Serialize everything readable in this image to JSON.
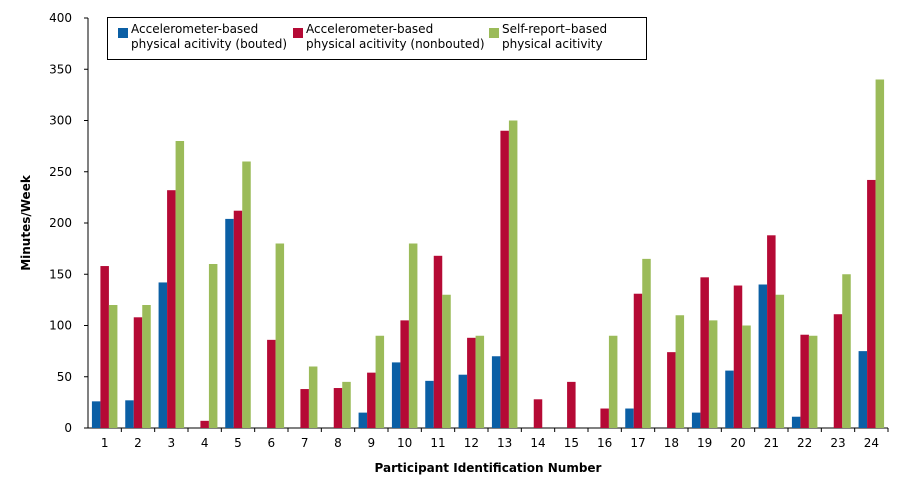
{
  "chart_data": {
    "type": "bar",
    "xlabel": "Participant Identification Number",
    "ylabel": "Minutes/Week",
    "ylim": [
      0,
      400
    ],
    "yticks": [
      0,
      50,
      100,
      150,
      200,
      250,
      300,
      350,
      400
    ],
    "categories": [
      "1",
      "2",
      "3",
      "4",
      "5",
      "6",
      "7",
      "8",
      "9",
      "10",
      "11",
      "12",
      "13",
      "14",
      "15",
      "16",
      "17",
      "18",
      "19",
      "20",
      "21",
      "22",
      "23",
      "24"
    ],
    "series": [
      {
        "name": "Accelerometer-based physical acitivity (bouted)",
        "line1": "Accelerometer-based",
        "line2": "physical acitivity (bouted)",
        "color": "#0b5fa5",
        "values": [
          26,
          27,
          142,
          0,
          204,
          0,
          0,
          0,
          15,
          64,
          46,
          52,
          70,
          0,
          0,
          0,
          19,
          0,
          15,
          56,
          140,
          11,
          0,
          75
        ]
      },
      {
        "name": "Accelerometer-based physical acitivity (nonbouted)",
        "line1": "Accelerometer-based",
        "line2": "physical acitivity (nonbouted)",
        "color": "#b50a35",
        "values": [
          158,
          108,
          232,
          7,
          212,
          86,
          38,
          39,
          54,
          105,
          168,
          88,
          290,
          28,
          45,
          19,
          131,
          74,
          147,
          139,
          188,
          91,
          111,
          242
        ]
      },
      {
        "name": "Self-report–based physical acitivity",
        "line1": "Self-report–based",
        "line2": "physical acitivity",
        "color": "#9bbb59",
        "values": [
          120,
          120,
          280,
          160,
          260,
          180,
          60,
          45,
          90,
          180,
          130,
          90,
          300,
          0,
          0,
          90,
          165,
          110,
          105,
          100,
          130,
          90,
          150,
          340
        ]
      }
    ],
    "grid": false,
    "legend": "top-left"
  }
}
